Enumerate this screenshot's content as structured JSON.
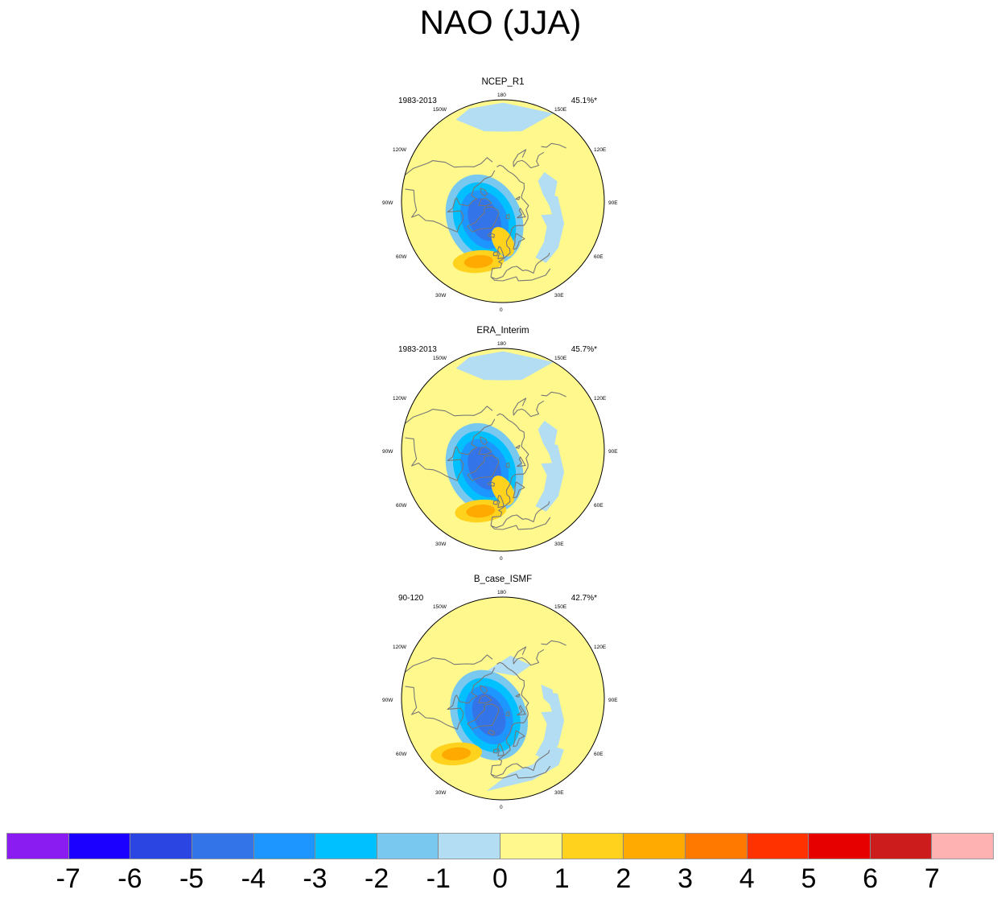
{
  "title": "NAO (JJA)",
  "panels": [
    {
      "name": "NCEP_R1",
      "period": "1983-2013",
      "variance": "45.1%*",
      "pos_center": {
        "lon": -22,
        "lat": 45
      },
      "neg_center": {
        "lon": -45,
        "lat": 72
      }
    },
    {
      "name": "ERA_Interim",
      "period": "1983-2013",
      "variance": "45.7%*",
      "pos_center": {
        "lon": -20,
        "lat": 45
      },
      "neg_center": {
        "lon": -45,
        "lat": 72
      }
    },
    {
      "name": "B_case_ISMF",
      "period": "90-120",
      "variance": "42.7%*",
      "pos_center": {
        "lon": -40,
        "lat": 40
      },
      "neg_center": {
        "lon": -40,
        "lat": 75
      }
    }
  ],
  "lon_labels": {
    "lon_0": "0",
    "lon_30e": "30E",
    "lon_60e": "60E",
    "lon_90e": "90E",
    "lon_120e": "120E",
    "lon_150e": "150E",
    "lon_180": "180",
    "lon_150w": "150W",
    "lon_120w": "120W",
    "lon_90w": "90W",
    "lon_60w": "60W",
    "lon_30w": "30W"
  },
  "colorbar": {
    "colors": [
      "#8a1cf2",
      "#1c00ff",
      "#2b45e3",
      "#3375e8",
      "#1e96ff",
      "#00c0ff",
      "#78c8f0",
      "#b2ddf2",
      "#fff88c",
      "#ffd21e",
      "#ffaa00",
      "#ff7800",
      "#ff3200",
      "#e60000",
      "#cd1c1c",
      "#ffb2b2"
    ],
    "labels": [
      "-7",
      "-6",
      "-5",
      "-4",
      "-3",
      "-2",
      "-1",
      "0",
      "1",
      "2",
      "3",
      "4",
      "5",
      "6",
      "7"
    ]
  },
  "colors": {
    "land_outline": "#777777",
    "map_border": "#000000",
    "positive_weak": "#fff88c",
    "negative_weak": "#b2ddf2"
  }
}
